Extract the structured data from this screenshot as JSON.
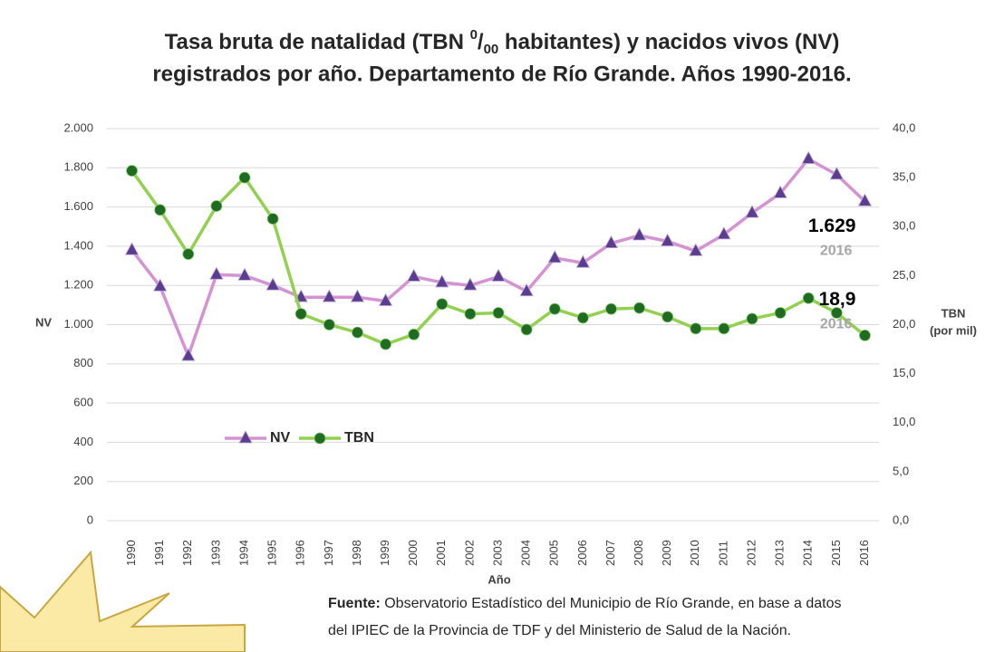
{
  "chart_data": {
    "type": "line",
    "title": {
      "before": "Tasa bruta de natalidad (TBN ",
      "sup": "0",
      "slash": "/",
      "sub": "00",
      "after": "  habitantes) y nacidos vivos (NV)",
      "line2": "registrados por año. Departamento de Río Grande. Años 1990-2016."
    },
    "x_label": "Año",
    "y_label": "NV",
    "y2_label": [
      "TBN",
      "(por mil)"
    ],
    "categories": [
      "1990",
      "1991",
      "1992",
      "1993",
      "1994",
      "1995",
      "1996",
      "1997",
      "1998",
      "1999",
      "2000",
      "2001",
      "2002",
      "2003",
      "2004",
      "2005",
      "2006",
      "2007",
      "2008",
      "2009",
      "2010",
      "2011",
      "2012",
      "2013",
      "2014",
      "2015",
      "2016"
    ],
    "series": [
      {
        "name": "NV",
        "color": "#d592d2",
        "marker_color": "#5a3d8e",
        "marker": "triangle",
        "values": [
          1380,
          1195,
          840,
          1255,
          1250,
          1200,
          1140,
          1140,
          1140,
          1120,
          1245,
          1215,
          1200,
          1245,
          1170,
          1340,
          1315,
          1415,
          1455,
          1425,
          1375,
          1460,
          1570,
          1670,
          1845,
          1765,
          1629
        ],
        "value_labels": [
          null,
          null,
          null,
          null,
          null,
          null,
          null,
          null,
          null,
          null,
          null,
          null,
          null,
          null,
          null,
          null,
          null,
          null,
          null,
          null,
          null,
          null,
          null,
          null,
          null,
          null,
          "1.629"
        ]
      },
      {
        "name": "TBN",
        "color": "#92d050",
        "marker_color": "#1f6b22",
        "marker": "circle",
        "axis": "y2",
        "values": [
          35.7,
          31.7,
          27.2,
          32.1,
          35.0,
          30.8,
          21.1,
          20.0,
          19.2,
          18.0,
          19.0,
          22.1,
          21.1,
          21.2,
          19.5,
          21.6,
          20.7,
          21.6,
          21.7,
          20.8,
          19.6,
          19.6,
          20.6,
          21.2,
          22.7,
          21.2,
          18.9
        ],
        "value_labels": [
          null,
          null,
          null,
          null,
          null,
          null,
          null,
          null,
          null,
          null,
          null,
          null,
          null,
          null,
          null,
          null,
          null,
          null,
          null,
          null,
          null,
          null,
          null,
          null,
          null,
          null,
          "18,9"
        ]
      }
    ],
    "ylim": [
      0,
      2000
    ],
    "yticks": [
      0,
      200,
      400,
      600,
      800,
      {
        "value": 1000,
        "label": "1.000"
      },
      {
        "value": 1200,
        "label": "1.200"
      },
      {
        "value": 1400,
        "label": "1.400"
      },
      {
        "value": 1600,
        "label": "1.600"
      },
      {
        "value": 1800,
        "label": "1.800"
      },
      {
        "value": 2000,
        "label": "2.000"
      }
    ],
    "y2lim": [
      0,
      40
    ],
    "y2ticks": [
      {
        "value": 0,
        "label": "0,0"
      },
      {
        "value": 5,
        "label": "5,0"
      },
      {
        "value": 10,
        "label": "10,0"
      },
      {
        "value": 15,
        "label": "15,0"
      },
      {
        "value": 20,
        "label": "20,0"
      },
      {
        "value": 25,
        "label": "25,0"
      },
      {
        "value": 30,
        "label": "30,0"
      },
      {
        "value": 35,
        "label": "35,0"
      },
      {
        "value": 40,
        "label": "40,0"
      }
    ],
    "grid": true,
    "source": {
      "bold": "Fuente:",
      "line1": " Observatorio Estadístico del Municipio de Río Grande, en base a datos",
      "line2": "del IPIEC de la Provincia de TDF y del Ministerio de Salud de la Nación."
    }
  }
}
